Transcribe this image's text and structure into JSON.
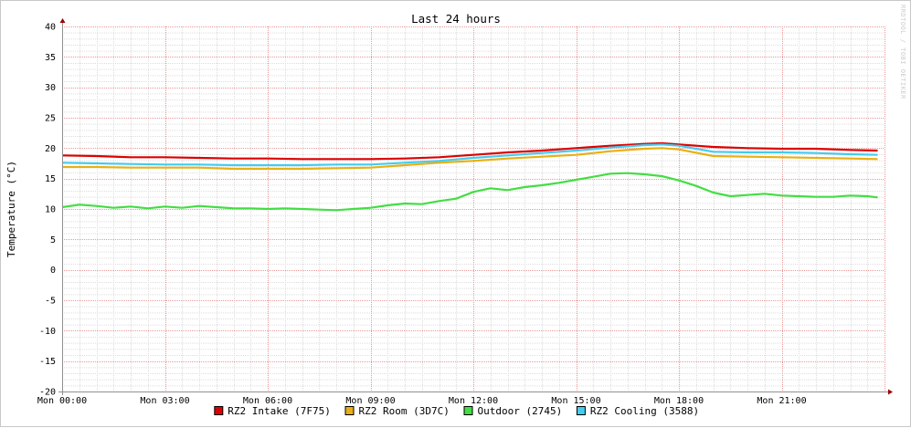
{
  "chart_data": {
    "type": "line",
    "title": "Last 24 hours",
    "ylabel": "Temperature (°C)",
    "xlabel": "",
    "watermark": "RRDTOOL / TOBI OETIKER",
    "ylim": [
      -20,
      40
    ],
    "y_ticks": [
      "-20",
      "-15",
      "-10",
      "-5",
      "0",
      "5",
      "10",
      "15",
      "20",
      "25",
      "30",
      "35",
      "40"
    ],
    "x_ticks": [
      "Mon 00:00",
      "Mon 03:00",
      "Mon 06:00",
      "Mon 09:00",
      "Mon 12:00",
      "Mon 15:00",
      "Mon 18:00",
      "Mon 21:00"
    ],
    "xlim_hours": [
      0,
      24
    ],
    "grid": true,
    "legend_position": "bottom",
    "colors": {
      "grid_major": "#e89999",
      "grid_minor": "#dddddd",
      "axis": "#909090",
      "arrow": "#990000"
    },
    "series": [
      {
        "name": "RZ2 Intake (7F75)",
        "color": "#dd0000",
        "edge": "#880000",
        "x": [
          0,
          1,
          2,
          3,
          4,
          5,
          6,
          7,
          8,
          9,
          10,
          11,
          12,
          13,
          14,
          15,
          16,
          17,
          17.5,
          18,
          19,
          20,
          21,
          22,
          23,
          23.8
        ],
        "values": [
          18.8,
          18.7,
          18.5,
          18.5,
          18.4,
          18.3,
          18.3,
          18.2,
          18.2,
          18.2,
          18.3,
          18.5,
          18.9,
          19.3,
          19.6,
          20.0,
          20.4,
          20.7,
          20.8,
          20.6,
          20.2,
          20.0,
          19.9,
          19.9,
          19.7,
          19.6
        ]
      },
      {
        "name": "RZ2 Room (3D7C)",
        "color": "#e8b014",
        "edge": "#8a6a00",
        "x": [
          0,
          1,
          2,
          3,
          4,
          5,
          6,
          7,
          8,
          9,
          10,
          11,
          12,
          13,
          14,
          15,
          16,
          17,
          17.5,
          18,
          19,
          20,
          21,
          22,
          23,
          23.8
        ],
        "values": [
          16.9,
          16.9,
          16.8,
          16.8,
          16.8,
          16.6,
          16.6,
          16.6,
          16.7,
          16.8,
          17.2,
          17.6,
          17.9,
          18.3,
          18.6,
          18.9,
          19.5,
          19.9,
          20.0,
          19.8,
          18.7,
          18.6,
          18.5,
          18.4,
          18.3,
          18.2
        ]
      },
      {
        "name": "Outdoor (2745)",
        "color": "#44dd44",
        "edge": "#228822",
        "x": [
          0,
          0.5,
          1,
          1.5,
          2,
          2.5,
          3,
          3.5,
          4,
          4.5,
          5,
          5.5,
          6,
          6.5,
          7,
          7.5,
          8,
          8.5,
          9,
          9.5,
          10,
          10.5,
          11,
          11.5,
          12,
          12.5,
          13,
          13.5,
          14,
          14.5,
          15,
          15.5,
          16,
          16.5,
          17,
          17.5,
          18,
          18.5,
          19,
          19.5,
          20,
          20.5,
          21,
          21.5,
          22,
          22.5,
          23,
          23.5,
          23.8
        ],
        "values": [
          10.3,
          10.7,
          10.5,
          10.2,
          10.4,
          10.1,
          10.4,
          10.2,
          10.5,
          10.3,
          10.1,
          10.1,
          10.0,
          10.1,
          10.0,
          9.9,
          9.8,
          10.0,
          10.2,
          10.6,
          10.9,
          10.8,
          11.3,
          11.7,
          12.8,
          13.4,
          13.1,
          13.6,
          13.9,
          14.3,
          14.8,
          15.3,
          15.8,
          15.9,
          15.7,
          15.4,
          14.7,
          13.8,
          12.7,
          12.1,
          12.3,
          12.5,
          12.2,
          12.1,
          12.0,
          12.0,
          12.2,
          12.1,
          11.9
        ]
      },
      {
        "name": "RZ2 Cooling (3588)",
        "color": "#44ccee",
        "edge": "#1a7a99",
        "x": [
          0,
          1,
          2,
          3,
          4,
          5,
          6,
          7,
          8,
          9,
          10,
          11,
          12,
          13,
          14,
          15,
          16,
          17,
          17.5,
          18,
          19,
          20,
          21,
          22,
          23,
          23.8
        ],
        "values": [
          17.6,
          17.5,
          17.4,
          17.3,
          17.3,
          17.2,
          17.2,
          17.2,
          17.3,
          17.3,
          17.6,
          17.9,
          18.4,
          18.8,
          19.2,
          19.6,
          20.1,
          20.5,
          20.6,
          20.4,
          19.4,
          19.3,
          19.3,
          19.2,
          19.0,
          18.9
        ]
      }
    ]
  }
}
